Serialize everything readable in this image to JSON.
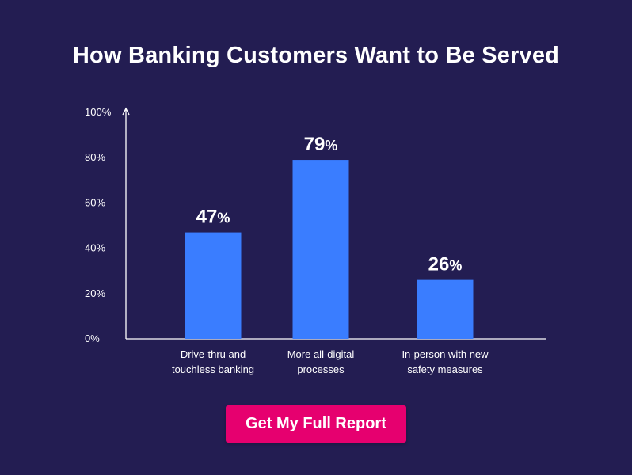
{
  "title": "How Banking Customers Want to Be Served",
  "cta": {
    "label": "Get My Full Report"
  },
  "colors": {
    "background": "#231d52",
    "bar": "#3a7dff",
    "axis": "#ffffff",
    "text": "#ffffff",
    "button": "#e6006f"
  },
  "chart_data": {
    "type": "bar",
    "title": "How Banking Customers Want to Be Served",
    "xlabel": "",
    "ylabel": "",
    "ylim": [
      0,
      100
    ],
    "yticks": [
      0,
      20,
      40,
      60,
      80,
      100
    ],
    "ytick_labels": [
      "0%",
      "20%",
      "40%",
      "60%",
      "80%",
      "100%"
    ],
    "categories": [
      [
        "Drive-thru and",
        "touchless banking"
      ],
      [
        "More all-digital",
        "processes"
      ],
      [
        "In-person with new",
        "safety measures"
      ]
    ],
    "values": [
      47,
      79,
      26
    ],
    "value_labels": [
      "47",
      "79",
      "26"
    ],
    "value_suffix": "%",
    "grid": false,
    "legend": "none"
  }
}
